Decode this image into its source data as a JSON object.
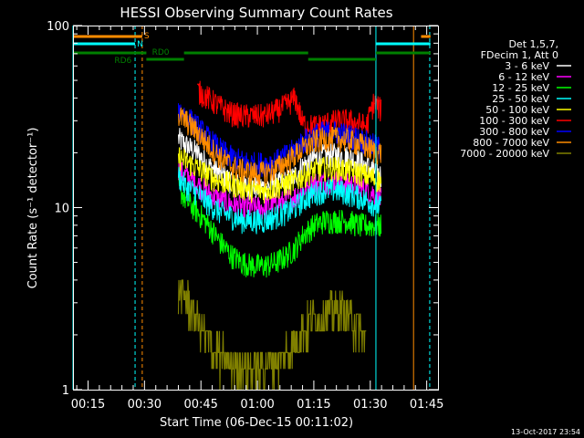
{
  "chart_data": {
    "type": "line",
    "title": "HESSI Observing Summary Count Rates",
    "xlabel": "Start Time (06-Dec-15 00:11:02)",
    "ylabel": "Count Rate (s⁻¹ detector⁻¹)",
    "yscale": "log",
    "ylim": [
      1,
      100
    ],
    "xlim_minutes": [
      11,
      108
    ],
    "grid": false,
    "x_tick_minutes": [
      15,
      30,
      45,
      60,
      75,
      90,
      105
    ],
    "x_tick_labels": [
      "00:15",
      "00:30",
      "00:45",
      "01:00",
      "01:15",
      "01:30",
      "01:45"
    ],
    "y_tick_values": [
      1,
      10,
      100
    ],
    "y_tick_labels": [
      "1",
      "10",
      "100"
    ],
    "legend_placement": "top-right, outside plot",
    "legend_header": [
      "Det 1,5,7,",
      "FDecim 1, Att 0"
    ],
    "timestamp": "13-Oct-2017 23:54",
    "series": [
      {
        "name": "3 - 6 keV",
        "color": "#ffffff",
        "x": [
          39,
          41,
          44,
          47,
          50,
          53,
          56,
          59,
          62,
          65,
          68,
          70,
          72,
          75,
          78,
          81,
          84,
          87,
          89,
          91,
          93
        ],
        "y": [
          24,
          22,
          20,
          17,
          15.5,
          14,
          13,
          13,
          13,
          13.5,
          14,
          15,
          17,
          18.5,
          19.5,
          19.5,
          19,
          18,
          17,
          16,
          15
        ]
      },
      {
        "name": "6 - 12 keV",
        "color": "#ff00ff",
        "x": [
          39,
          41,
          44,
          47,
          50,
          53,
          56,
          59,
          62,
          65,
          68,
          70,
          72,
          75,
          78,
          81,
          84,
          87,
          89,
          91,
          93
        ],
        "y": [
          16,
          15,
          13.5,
          12,
          11,
          10.5,
          10,
          10,
          10,
          10.5,
          11,
          11.5,
          12.5,
          13.5,
          14,
          14,
          13.5,
          13,
          12.5,
          12,
          11
        ]
      },
      {
        "name": "12 - 25 keV",
        "color": "#00ff00",
        "x": [
          39,
          41,
          44,
          47,
          50,
          53,
          56,
          59,
          62,
          65,
          68,
          70,
          72,
          75,
          78,
          81,
          84,
          87,
          89,
          91,
          93
        ],
        "y": [
          13,
          11,
          9.5,
          8,
          6.5,
          5.5,
          5,
          4.8,
          4.8,
          5,
          5.5,
          6,
          7,
          8,
          8.5,
          8.5,
          8.5,
          8,
          8,
          8,
          8
        ]
      },
      {
        "name": "25 - 50 keV",
        "color": "#00ffff",
        "x": [
          39,
          41,
          44,
          47,
          50,
          53,
          56,
          59,
          62,
          65,
          68,
          70,
          72,
          75,
          78,
          81,
          84,
          87,
          89,
          91,
          93
        ],
        "y": [
          15,
          13,
          12,
          10.5,
          9.5,
          9,
          8.5,
          8.5,
          8.5,
          9,
          9.5,
          10,
          11,
          12,
          12.5,
          12.5,
          12,
          11.5,
          11,
          10.5,
          10
        ]
      },
      {
        "name": "50 - 100 keV",
        "color": "#ffff00",
        "x": [
          39,
          41,
          44,
          47,
          50,
          53,
          56,
          59,
          62,
          65,
          68,
          70,
          72,
          75,
          78,
          81,
          84,
          87,
          89,
          91,
          93
        ],
        "y": [
          19,
          18,
          16.5,
          15,
          14,
          13.5,
          13,
          12.5,
          12.5,
          13,
          13.5,
          14,
          15,
          16,
          16.5,
          16.5,
          16,
          15.5,
          15,
          14.5,
          14
        ]
      },
      {
        "name": "100 - 300 keV",
        "color": "#ff0000",
        "x": [
          39,
          41,
          44,
          47,
          50,
          53,
          56,
          59,
          62,
          65,
          68,
          70,
          72,
          75,
          78,
          81,
          84,
          87,
          89,
          91,
          93
        ],
        "y": [
          null,
          null,
          44,
          40,
          36,
          33,
          32,
          32,
          32,
          34,
          37,
          40,
          29,
          28,
          29,
          30,
          30,
          29,
          28,
          38,
          34
        ]
      },
      {
        "name": "300 - 800 keV",
        "color": "#0000ff",
        "x": [
          39,
          41,
          44,
          47,
          50,
          53,
          56,
          59,
          62,
          65,
          68,
          70,
          72,
          75,
          78,
          81,
          84,
          87,
          89,
          91,
          93
        ],
        "y": [
          35,
          32,
          28,
          24,
          21,
          19,
          18,
          17.5,
          17.5,
          18,
          19.5,
          21,
          23,
          25,
          26,
          26,
          25,
          24,
          23,
          22,
          21
        ]
      },
      {
        "name": "800 - 7000 keV",
        "color": "#ff8c00",
        "x": [
          39,
          41,
          44,
          47,
          50,
          53,
          56,
          59,
          62,
          65,
          68,
          70,
          72,
          75,
          78,
          81,
          84,
          87,
          89,
          91,
          93
        ],
        "y": [
          32,
          30,
          26,
          22,
          19,
          17,
          16,
          15.5,
          15.5,
          16.5,
          18,
          19.5,
          21,
          23,
          24,
          24,
          23.5,
          22.5,
          21.5,
          20.5,
          20
        ]
      },
      {
        "name": "7000 - 20000 keV",
        "color": "#808000",
        "x": [
          39,
          41,
          43,
          45,
          47,
          50,
          53,
          56,
          59,
          62,
          65,
          68,
          70,
          72,
          75,
          78,
          81,
          84,
          87,
          89
        ],
        "y": [
          3.5,
          3.2,
          2.6,
          2.2,
          1.8,
          1.5,
          1.4,
          1.4,
          1.3,
          1.4,
          1.5,
          1.6,
          1.8,
          2.2,
          2.4,
          2.6,
          2.8,
          2.6,
          2.2,
          1.8
        ]
      }
    ],
    "state_bars": [
      {
        "label": "S",
        "color": "#ff8c00",
        "segments": [
          [
            11,
            29.4
          ],
          [
            103.5,
            106
          ]
        ]
      },
      {
        "label": "N",
        "color": "#00ffff",
        "segments": [
          [
            11,
            27.5
          ],
          [
            91.5,
            106
          ]
        ]
      },
      {
        "label": "RD0",
        "color": "#008000",
        "segments": [
          [
            30.5,
            40.5
          ],
          [
            40.5,
            73.5
          ],
          [
            73.5,
            91.5
          ],
          [
            91.5,
            106
          ]
        ]
      },
      {
        "label": "RD6",
        "color": "#008000",
        "segments": [
          [
            11,
            30.5
          ],
          [
            91.5,
            106
          ]
        ]
      }
    ],
    "vertical_lines": [
      {
        "x": 11,
        "color": "#00ffff",
        "style": "solid"
      },
      {
        "x": 27.5,
        "color": "#00ffff",
        "style": "dashed"
      },
      {
        "x": 29.4,
        "color": "#ff8c00",
        "style": "dashed"
      },
      {
        "x": 91.5,
        "color": "#00ffff",
        "style": "solid"
      },
      {
        "x": 101.5,
        "color": "#ff8c00",
        "style": "solid"
      },
      {
        "x": 105.8,
        "color": "#00ffff",
        "style": "dashed"
      }
    ]
  }
}
